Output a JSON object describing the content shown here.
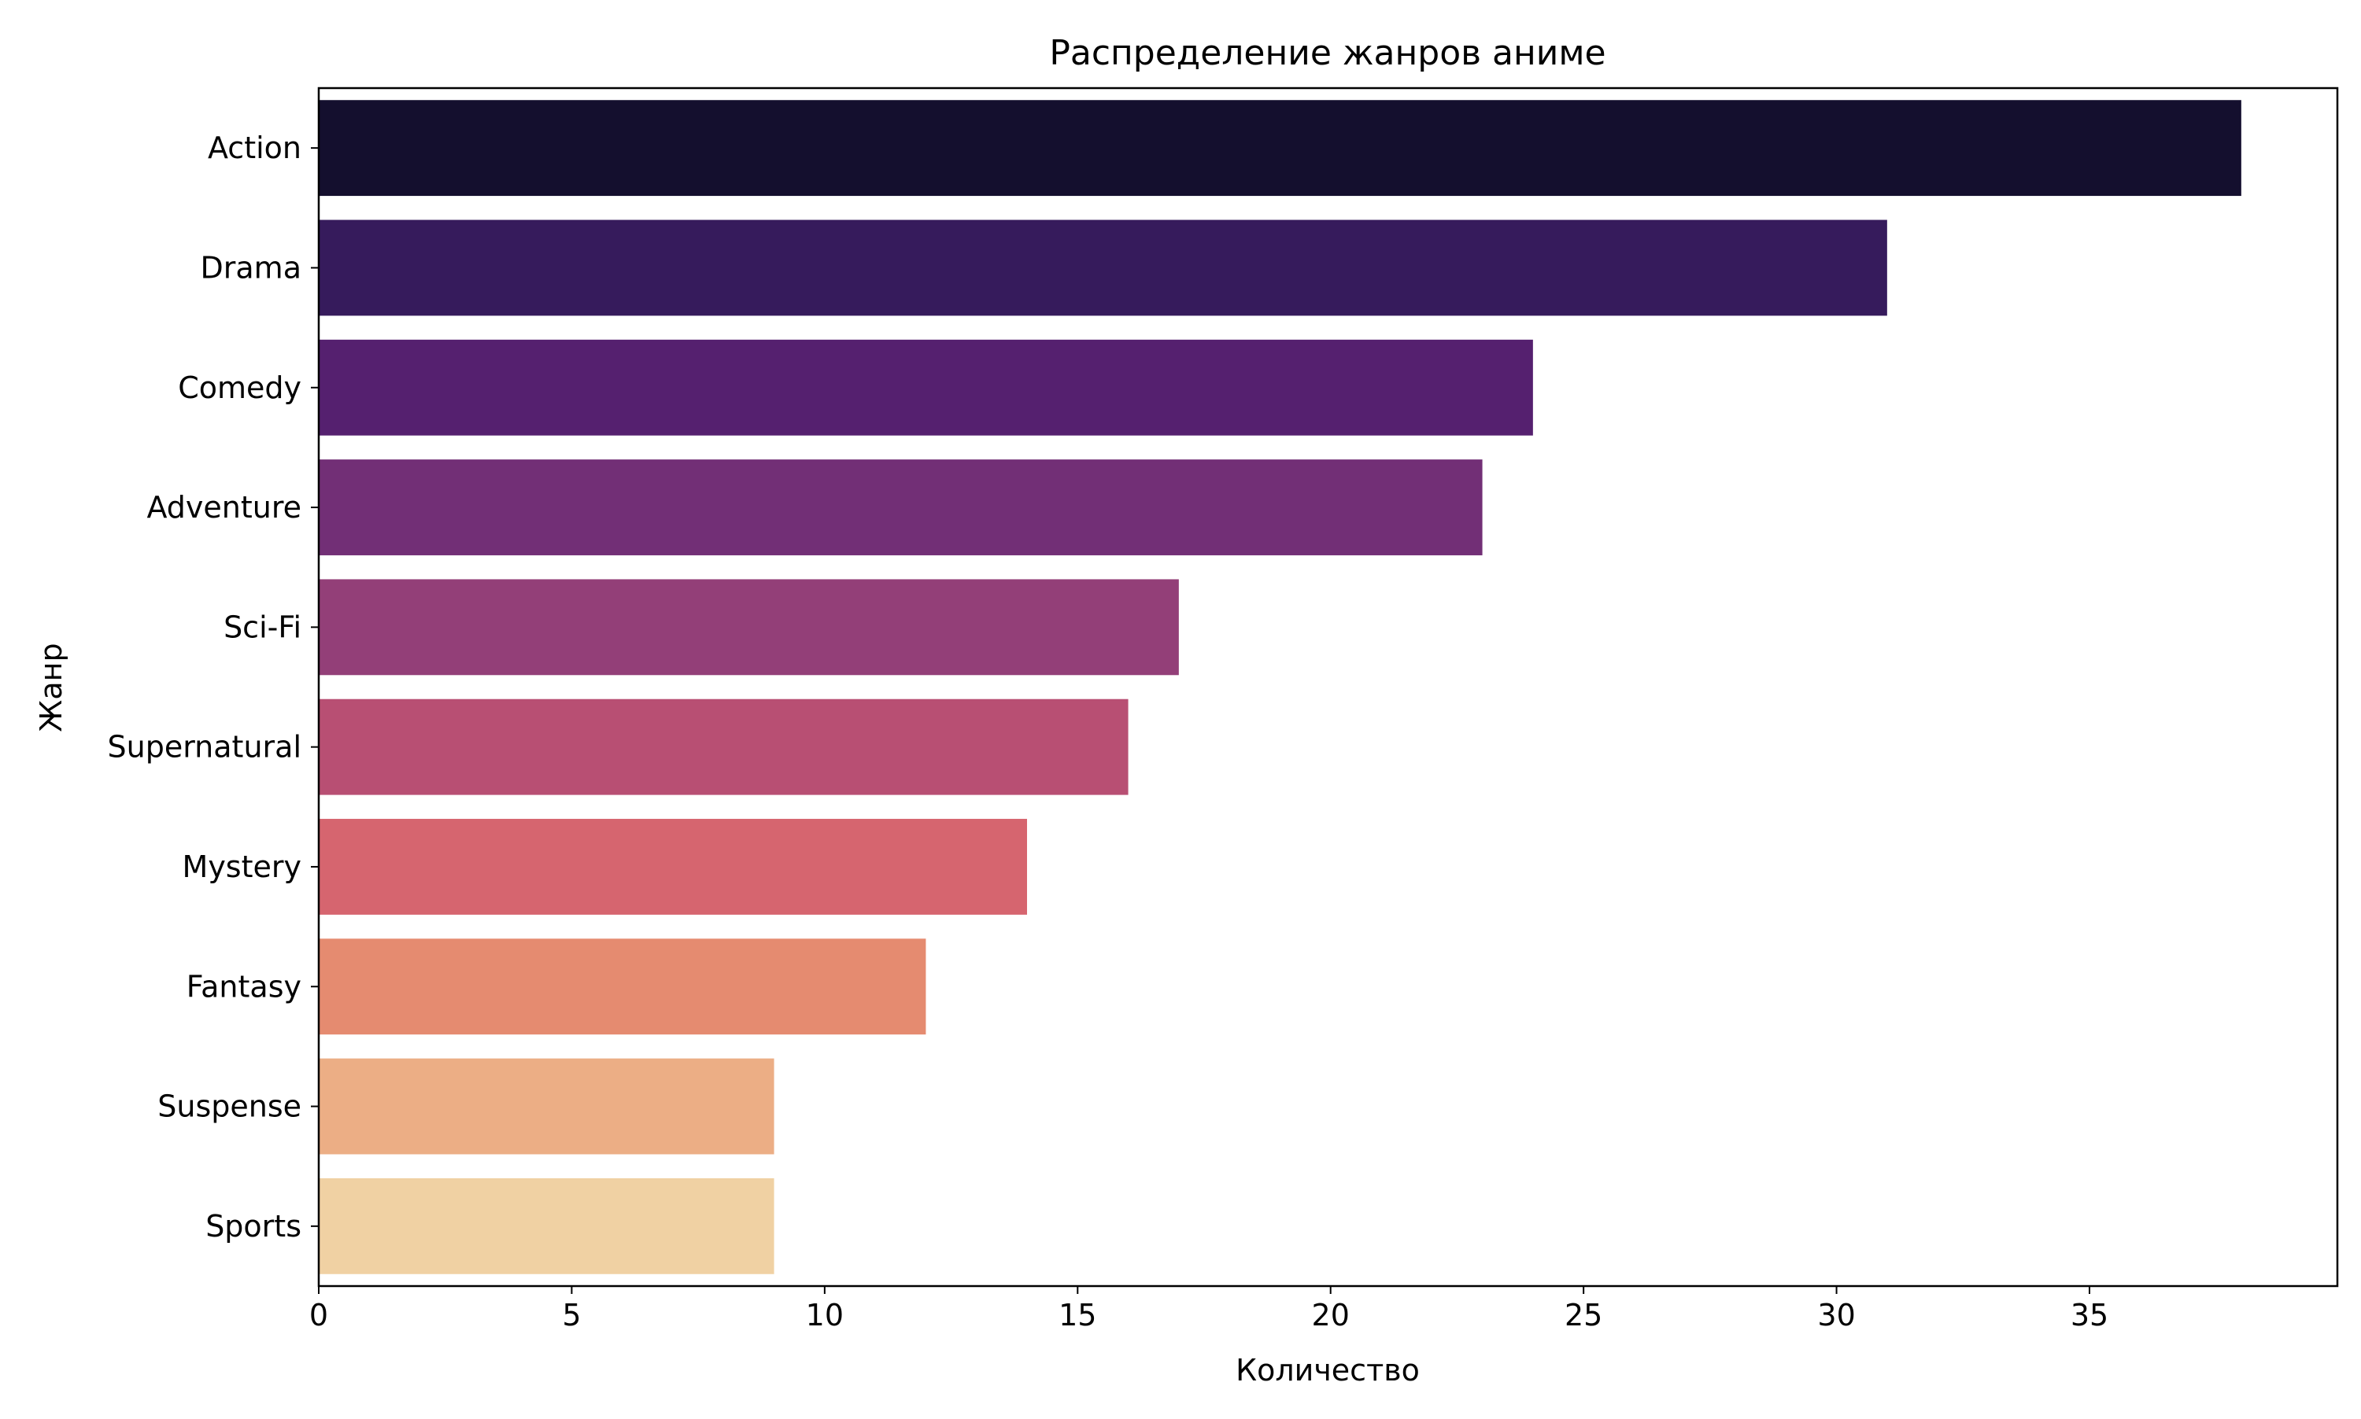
{
  "chart_data": {
    "type": "bar",
    "orientation": "horizontal",
    "title": "Распределение жанров аниме",
    "xlabel": "Количество",
    "ylabel": "Жанр",
    "categories": [
      "Action",
      "Drama",
      "Comedy",
      "Adventure",
      "Sci-Fi",
      "Supernatural",
      "Mystery",
      "Fantasy",
      "Suspense",
      "Sports"
    ],
    "values": [
      38,
      31,
      24,
      23,
      17,
      16,
      14,
      12,
      9,
      9
    ],
    "colors": [
      "#140f2e",
      "#361b5c",
      "#55206f",
      "#722f76",
      "#933f78",
      "#b84f73",
      "#d6656f",
      "#e58b70",
      "#ecae85",
      "#f0d1a3"
    ],
    "xlim": [
      0,
      39.9
    ],
    "xticks": [
      0,
      5,
      10,
      15,
      20,
      25,
      30,
      35
    ],
    "grid": false,
    "legend": "none"
  }
}
